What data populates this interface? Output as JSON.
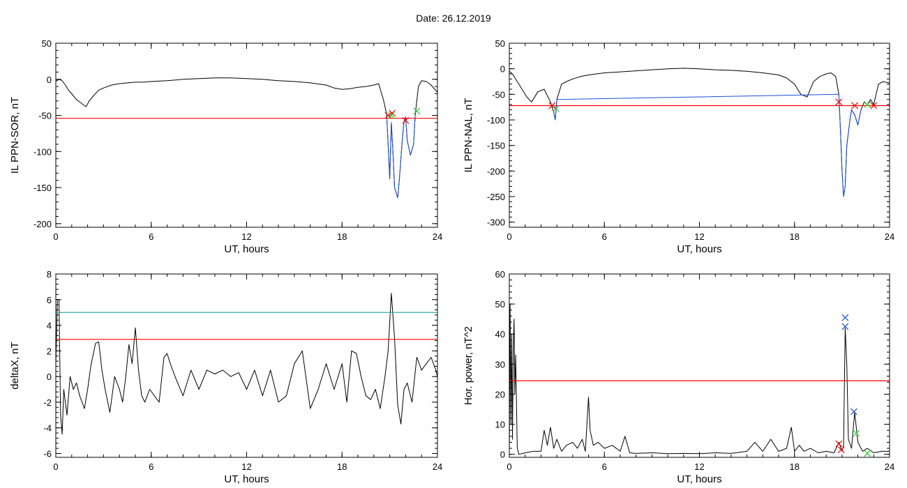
{
  "title": "Date:  26.12.2019",
  "colors": {
    "trace": "#000000",
    "red": "#ff0000",
    "blue": "#1a4fd6",
    "cyan": "#1fa0a0",
    "green": "#32c832"
  },
  "chart_data": [
    {
      "type": "line",
      "id": "p1",
      "ylabel": "IL PPN-SOR, nT",
      "xlabel": "UT, hours",
      "xlim": [
        0,
        24
      ],
      "ylim": [
        -205,
        50
      ],
      "xticks": [
        0,
        6,
        12,
        18,
        24
      ],
      "yticks": [
        50,
        0,
        -50,
        -100,
        -150,
        -200
      ],
      "grid": false,
      "series": [
        {
          "color": "black",
          "x": [
            0,
            0.2,
            0.4,
            0.6,
            0.8,
            1.0,
            1.3,
            1.6,
            1.9,
            2.1,
            2.4,
            2.7,
            3.0,
            3.5,
            4.0,
            4.5,
            5.0,
            5.5,
            6,
            7,
            8,
            9,
            10,
            11,
            12,
            13,
            14,
            15,
            16,
            17,
            17.5,
            18,
            18.5,
            19,
            19.5,
            20,
            20.3,
            20.6,
            20.8,
            20.9,
            21.0,
            21.1,
            21.2,
            21.3,
            21.5,
            21.6,
            21.8,
            21.9,
            22.0,
            22.1,
            22.3,
            22.5,
            22.6,
            22.8,
            23.0,
            23.3,
            23.6,
            24
          ],
          "y": [
            -3,
            0,
            -2,
            -8,
            -15,
            -20,
            -28,
            -33,
            -38,
            -30,
            -22,
            -15,
            -12,
            -8,
            -6,
            -5,
            -4,
            -4,
            -3,
            -2,
            0,
            1,
            2,
            2,
            1,
            0,
            -2,
            -3,
            -5,
            -8,
            -12,
            -14,
            -13,
            -11,
            -10,
            -8,
            -6,
            -28,
            -48,
            -90,
            -138,
            -60,
            -100,
            -150,
            -164,
            -140,
            -80,
            -58,
            -52,
            -85,
            -105,
            -90,
            -50,
            -10,
            -2,
            -3,
            -8,
            -18
          ]
        },
        {
          "color": "blue",
          "x": [
            20.8,
            20.9,
            21.0,
            21.1,
            21.2,
            21.3,
            21.5,
            21.6,
            21.8,
            21.9,
            22.0,
            22.1,
            22.3,
            22.5,
            22.6
          ],
          "y": [
            -48,
            -90,
            -138,
            -60,
            -100,
            -150,
            -164,
            -140,
            -80,
            -58,
            -52,
            -85,
            -105,
            -90,
            -50
          ]
        },
        {
          "color": "red",
          "x": [
            0,
            24
          ],
          "y": [
            -54,
            -54
          ]
        }
      ],
      "markers": [
        {
          "x": 20.9,
          "y": -50,
          "color": "red"
        },
        {
          "x": 21.15,
          "y": -47,
          "color": "red"
        },
        {
          "x": 22.0,
          "y": -57,
          "color": "red"
        },
        {
          "x": 21.1,
          "y": -50,
          "color": "green"
        },
        {
          "x": 22.7,
          "y": -44,
          "color": "green"
        }
      ]
    },
    {
      "type": "line",
      "id": "p2",
      "ylabel": "IL PPN-NAL, nT",
      "xlabel": "UT, hours",
      "xlim": [
        0,
        24
      ],
      "ylim": [
        -310,
        50
      ],
      "xticks": [
        0,
        6,
        12,
        18,
        24
      ],
      "yticks": [
        50,
        0,
        -50,
        -100,
        -150,
        -200,
        -250,
        -300
      ],
      "grid": false,
      "series": [
        {
          "color": "black",
          "x": [
            0,
            0.2,
            0.5,
            0.8,
            1.1,
            1.4,
            1.8,
            2.2,
            2.6,
            2.8,
            2.9,
            3.0,
            3.3,
            3.6,
            4.0,
            4.5,
            5.0,
            5.5,
            6,
            7,
            8,
            9,
            10,
            11,
            12,
            13,
            14,
            15,
            16,
            17,
            17.5,
            18,
            18.4,
            18.8,
            19.2,
            19.6,
            20,
            20.3,
            20.6,
            20.8,
            20.9,
            21.0,
            21.1,
            21.2,
            21.3,
            21.5,
            21.6,
            21.8,
            22.0,
            22.2,
            22.4,
            22.6,
            22.8,
            23.0,
            23.3,
            23.6,
            24
          ],
          "y": [
            -5,
            -10,
            -25,
            -40,
            -55,
            -65,
            -45,
            -40,
            -65,
            -85,
            -100,
            -60,
            -30,
            -25,
            -20,
            -15,
            -12,
            -10,
            -8,
            -6,
            -4,
            -2,
            0,
            1,
            0,
            -2,
            -3,
            -5,
            -8,
            -12,
            -18,
            -30,
            -50,
            -55,
            -25,
            -15,
            -10,
            -8,
            -15,
            -50,
            -120,
            -200,
            -250,
            -230,
            -150,
            -100,
            -80,
            -90,
            -110,
            -80,
            -65,
            -70,
            -60,
            -70,
            -30,
            -25,
            -28
          ]
        },
        {
          "color": "blue",
          "x": [
            2.8,
            2.9,
            3.0,
            20.8,
            20.9,
            21.0,
            21.1,
            21.2,
            21.3,
            21.5,
            21.6,
            21.8,
            22.0,
            22.2
          ],
          "y": [
            -85,
            -100,
            -60,
            -50,
            -120,
            -200,
            -250,
            -230,
            -150,
            -100,
            -80,
            -90,
            -110,
            -80
          ]
        },
        {
          "color": "red",
          "x": [
            0,
            24
          ],
          "y": [
            -72,
            -72
          ]
        }
      ],
      "markers": [
        {
          "x": 2.7,
          "y": -72,
          "color": "red"
        },
        {
          "x": 2.95,
          "y": -78,
          "color": "green"
        },
        {
          "x": 20.8,
          "y": -65,
          "color": "red"
        },
        {
          "x": 21.8,
          "y": -72,
          "color": "red"
        },
        {
          "x": 22.6,
          "y": -70,
          "color": "green"
        },
        {
          "x": 23.0,
          "y": -72,
          "color": "red"
        }
      ]
    },
    {
      "type": "line",
      "id": "p3",
      "ylabel": "deltaX, nT",
      "xlabel": "UT, hours",
      "xlim": [
        0,
        24
      ],
      "ylim": [
        -6.3,
        8
      ],
      "xticks": [
        0,
        6,
        12,
        18,
        24
      ],
      "yticks": [
        8,
        6,
        4,
        2,
        0,
        -2,
        -4,
        -6
      ],
      "grid": false,
      "series": [
        {
          "color": "black",
          "x": [
            0,
            0.1,
            0.2,
            0.3,
            0.4,
            0.5,
            0.7,
            0.9,
            1.1,
            1.3,
            1.5,
            1.8,
            2.0,
            2.2,
            2.5,
            2.7,
            2.9,
            3.1,
            3.4,
            3.7,
            4.0,
            4.2,
            4.4,
            4.6,
            4.8,
            5.0,
            5.2,
            5.4,
            5.6,
            5.9,
            6.2,
            6.5,
            6.8,
            7.0,
            7.2,
            7.5,
            8.0,
            8.5,
            9.0,
            9.5,
            10,
            10.5,
            11,
            11.5,
            12,
            12.5,
            13,
            13.5,
            14,
            14.5,
            15,
            15.5,
            16,
            16.5,
            17,
            17.5,
            18,
            18.3,
            18.6,
            18.9,
            19.2,
            19.5,
            19.8,
            20.1,
            20.4,
            20.7,
            20.9,
            21.1,
            21.3,
            21.5,
            21.7,
            21.9,
            22.1,
            22.4,
            22.7,
            23.0,
            23.3,
            23.6,
            23.9,
            24
          ],
          "y": [
            1,
            6,
            6,
            -3,
            -4.5,
            -1,
            -3,
            0,
            -1,
            -0.5,
            -1.5,
            -2.5,
            -1,
            0.8,
            2.6,
            2.7,
            0.5,
            -1,
            -2.8,
            0,
            -1,
            -2,
            0,
            2.5,
            1,
            3.8,
            0.5,
            -1.5,
            -2,
            -1,
            -1.5,
            -2,
            1.5,
            1.8,
            1,
            0,
            -1.5,
            0.5,
            -1,
            0.5,
            0.2,
            0.5,
            0,
            0.3,
            -1,
            0.5,
            -1.5,
            0.5,
            -2,
            -1.5,
            1,
            2,
            -2.5,
            -1,
            1,
            -1,
            1,
            -2,
            2,
            1.8,
            0,
            -1.5,
            -1.8,
            -1,
            -2.5,
            0,
            2,
            6.5,
            3,
            -2.2,
            -3.7,
            -1,
            -0.5,
            -2,
            1.5,
            0.5,
            1,
            1.5,
            0.5,
            0
          ]
        },
        {
          "color": "cyan",
          "x": [
            0,
            24
          ],
          "y": [
            5,
            5
          ]
        },
        {
          "color": "red",
          "x": [
            0,
            24
          ],
          "y": [
            2.9,
            2.9
          ]
        }
      ],
      "markers": []
    },
    {
      "type": "line",
      "id": "p4",
      "ylabel": "Hor. power, nT^2",
      "xlabel": "UT, hours",
      "xlim": [
        0,
        24
      ],
      "ylim": [
        -1,
        60
      ],
      "xticks": [
        0,
        6,
        12,
        18,
        24
      ],
      "yticks": [
        60,
        50,
        40,
        30,
        20,
        10,
        0
      ],
      "grid": false,
      "series": [
        {
          "color": "black",
          "x": [
            0,
            0.05,
            0.1,
            0.15,
            0.2,
            0.25,
            0.3,
            0.35,
            0.4,
            0.5,
            0.6,
            1.0,
            1.5,
            2.0,
            2.2,
            2.4,
            2.6,
            2.8,
            3.0,
            3.3,
            3.6,
            4.0,
            4.3,
            4.6,
            4.8,
            5.0,
            5.1,
            5.3,
            5.6,
            6.0,
            6.5,
            7.0,
            7.3,
            7.6,
            8,
            9,
            10,
            11,
            12,
            13,
            14,
            15,
            15.5,
            16,
            16.5,
            17,
            17.5,
            17.8,
            18.0,
            18.3,
            18.6,
            19.0,
            19.5,
            20.0,
            20.5,
            20.8,
            21.0,
            21.1,
            21.2,
            21.3,
            21.4,
            21.6,
            21.8,
            22.0,
            22.3,
            22.6,
            23.0,
            23.5,
            24
          ],
          "y": [
            0,
            50,
            10,
            40,
            5,
            35,
            45,
            20,
            33,
            2,
            0,
            0.5,
            1,
            1,
            8,
            3,
            9,
            2,
            5,
            1,
            3,
            4,
            2,
            5,
            1,
            19,
            8,
            3,
            4,
            2,
            3,
            1,
            6,
            0.5,
            0.3,
            0.5,
            0.2,
            0.3,
            0.2,
            0.5,
            0.3,
            1,
            4,
            1,
            5,
            1,
            2,
            9,
            1,
            3,
            1,
            2,
            0.5,
            1,
            0.5,
            4,
            1,
            3,
            42,
            30,
            5,
            2,
            14,
            4,
            1,
            2,
            0.5,
            1,
            1
          ]
        },
        {
          "color": "red",
          "x": [
            0,
            24
          ],
          "y": [
            24.5,
            24.5
          ]
        }
      ],
      "markers": [
        {
          "x": 21.2,
          "y": 45.5,
          "color": "blue"
        },
        {
          "x": 21.2,
          "y": 42.5,
          "color": "blue"
        },
        {
          "x": 21.75,
          "y": 14.2,
          "color": "blue"
        },
        {
          "x": 21.9,
          "y": 7,
          "color": "green"
        },
        {
          "x": 20.8,
          "y": 3.5,
          "color": "red"
        },
        {
          "x": 20.95,
          "y": 1.5,
          "color": "red"
        },
        {
          "x": 22.6,
          "y": 0.3,
          "color": "green"
        }
      ]
    }
  ]
}
